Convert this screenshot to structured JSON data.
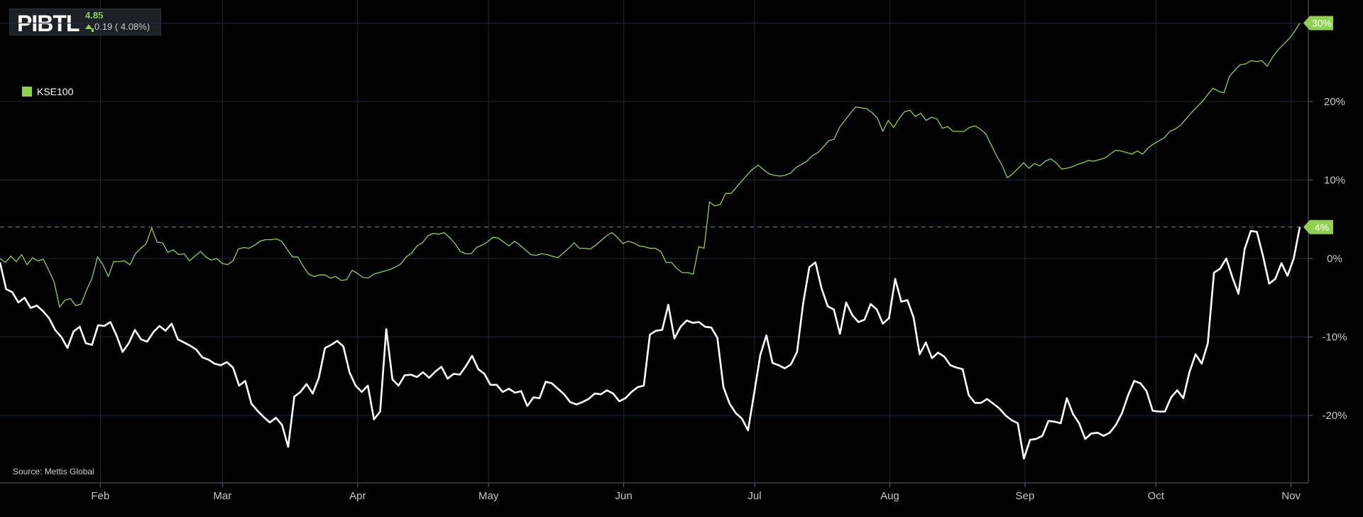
{
  "ticker": {
    "symbol": "PIBTL",
    "price": "4.85",
    "change": "0.19 ( 4.08%)"
  },
  "source": "Source: Mettis Global",
  "colors": {
    "background": "#000000",
    "grid": "#1e2a3a",
    "benchmark": "#8fd14f",
    "stock": "#ffffff",
    "label_bg": "#8fd14f"
  },
  "chart_data": {
    "type": "line",
    "x_tick_labels": [
      "Feb",
      "Mar",
      "Apr",
      "May",
      "Jun",
      "Jul",
      "Aug",
      "Sep",
      "Oct",
      "Nov"
    ],
    "y_tick_labels": [
      "20%",
      "10%",
      "0%",
      "-10%",
      "-20%"
    ],
    "y_ticks": [
      20,
      10,
      0,
      -10,
      -20
    ],
    "ylim": [
      -28,
      33
    ],
    "legend_position": "top-left",
    "end_labels": [
      "30%",
      "4%"
    ],
    "reference_line": 4,
    "x_start": "2023-01-09",
    "x_end": "2023-11-03",
    "x_tick_dates": [
      "2023-02-01",
      "2023-03-01",
      "2023-04-01",
      "2023-05-01",
      "2023-06-01",
      "2023-07-01",
      "2023-08-01",
      "2023-09-01",
      "2023-10-01",
      "2023-11-01"
    ],
    "series": [
      {
        "name": "KSE100",
        "role": "benchmark",
        "values": [
          0,
          -0.5,
          0.3,
          -0.4,
          0.5,
          -0.8,
          0.1,
          -0.3,
          -0.1,
          -1.5,
          -3,
          -6.2,
          -5.3,
          -5.1,
          -6,
          -5.8,
          -4,
          -2.5,
          0.2,
          -0.8,
          -2.3,
          -0.4,
          -0.4,
          -0.3,
          -0.8,
          0.6,
          1.3,
          1.9,
          3.9,
          2.1,
          2,
          0.8,
          1.1,
          0.5,
          0.6,
          -0.3,
          0.3,
          0.9,
          0.2,
          -0.2,
          0,
          -0.6,
          -0.8,
          -0.3,
          1.2,
          1.4,
          1.3,
          1.7,
          2.2,
          2.4,
          2.4,
          2.5,
          2.2,
          1.2,
          0.2,
          0.2,
          -1,
          -2,
          -2.3,
          -2.1,
          -2.1,
          -2.5,
          -2.3,
          -2.8,
          -2.7,
          -1.5,
          -1.9,
          -2.4,
          -2.5,
          -2,
          -1.8,
          -1.6,
          -1.4,
          -1.1,
          -0.7,
          0.2,
          0.7,
          1.6,
          2,
          2.9,
          3.2,
          3.1,
          3.3,
          2.7,
          1.9,
          0.9,
          0.6,
          0.6,
          1.4,
          1.7,
          2.1,
          2.7,
          2.6,
          2.1,
          1.6,
          2.2,
          1.7,
          1.1,
          0.5,
          0.4,
          0.6,
          0.5,
          0.3,
          0.1,
          0.7,
          1.3,
          2,
          1.3,
          1.3,
          1.2,
          1.7,
          2.3,
          2.9,
          3.3,
          2.7,
          1.9,
          2.2,
          2,
          1.6,
          1.5,
          1.3,
          1.3,
          0.9,
          -0.5,
          -0.5,
          -1.3,
          -1.8,
          -1.8,
          -2,
          1.5,
          1.3,
          7.2,
          6.7,
          6.9,
          8.3,
          8.3,
          9.1,
          9.9,
          10.7,
          11.4,
          11.9,
          11.3,
          10.8,
          10.6,
          10.5,
          10.6,
          10.9,
          11.6,
          12,
          12.4,
          13.1,
          13.5,
          14.2,
          15,
          15.2,
          16.7,
          17.6,
          18.5,
          19.3,
          19.2,
          19.1,
          18.6,
          17.9,
          16.2,
          17.6,
          16.7,
          17.8,
          18.7,
          18.9,
          18.1,
          18.5,
          17.6,
          18,
          17.8,
          16.6,
          16.8,
          16.2,
          16.2,
          16.2,
          16.7,
          16.9,
          16.5,
          15.9,
          14.5,
          13.1,
          11.9,
          10.3,
          10.8,
          11.5,
          12.2,
          11.5,
          12.1,
          11.8,
          12.4,
          12.7,
          12.2,
          11.4,
          11.5,
          11.7,
          12,
          12.2,
          12.5,
          12.4,
          12.6,
          12.8,
          13.3,
          13.8,
          13.7,
          13.5,
          13.3,
          13.7,
          13.3,
          14.1,
          14.6,
          15,
          15.4,
          16.2,
          16.5,
          17,
          17.8,
          18.6,
          19.3,
          20,
          20.9,
          21.7,
          21.3,
          21.1,
          23.2,
          24,
          24.7,
          24.8,
          25.2,
          25.1,
          25.2,
          24.5,
          25.7,
          26.6,
          27.3,
          28,
          28.9,
          30
        ]
      },
      {
        "name": "PIBTL",
        "role": "stock",
        "values": [
          -0.5,
          -3.9,
          -4.3,
          -5.6,
          -5,
          -6.3,
          -6,
          -6.7,
          -7.6,
          -9.1,
          -10,
          -11.4,
          -9.3,
          -8.7,
          -10.8,
          -11,
          -8.5,
          -8.6,
          -8.1,
          -9.8,
          -11.9,
          -10.8,
          -9.1,
          -10.3,
          -10.6,
          -9.4,
          -8.6,
          -9.2,
          -8.3,
          -10.3,
          -10.7,
          -11.1,
          -11.6,
          -12.6,
          -12.9,
          -13.4,
          -13.6,
          -13.2,
          -13.9,
          -16.2,
          -15.6,
          -18.5,
          -19.4,
          -20.2,
          -20.9,
          -20.3,
          -21.2,
          -24,
          -17.6,
          -17,
          -16,
          -17.2,
          -15.2,
          -11.4,
          -11,
          -10.5,
          -11.2,
          -14.5,
          -16.2,
          -17,
          -16.2,
          -20.5,
          -19.5,
          -9,
          -15.4,
          -16.2,
          -14.9,
          -14.8,
          -15.1,
          -14.5,
          -15.2,
          -14.4,
          -13.8,
          -15.3,
          -14.7,
          -14.8,
          -13.7,
          -12.4,
          -14.1,
          -14.7,
          -16.1,
          -16.1,
          -17,
          -16.6,
          -17.1,
          -16.9,
          -18.8,
          -17.7,
          -17.8,
          -15.7,
          -15.9,
          -16.6,
          -17.3,
          -18.3,
          -18.6,
          -18.3,
          -17.9,
          -17.2,
          -17.3,
          -16.8,
          -17.2,
          -18.2,
          -17.8,
          -17,
          -16.4,
          -16.2,
          -9.7,
          -9.2,
          -9.1,
          -5.9,
          -10.2,
          -8.7,
          -7.9,
          -8.2,
          -8.1,
          -8.7,
          -8.8,
          -10.1,
          -16.4,
          -18.5,
          -19.7,
          -20.4,
          -21.9,
          -17.2,
          -12.3,
          -9.8,
          -13.3,
          -13.6,
          -14,
          -13.5,
          -11.9,
          -5.7,
          -1.1,
          -0.5,
          -3.8,
          -6.1,
          -6.5,
          -9.6,
          -5.6,
          -7.2,
          -8.1,
          -7.8,
          -5.8,
          -6.5,
          -8.3,
          -7.6,
          -2.6,
          -5.5,
          -5.3,
          -7.5,
          -12.2,
          -10.7,
          -12.7,
          -12,
          -12.5,
          -13.6,
          -13.9,
          -14.1,
          -17.4,
          -18.4,
          -18.4,
          -17.9,
          -18.5,
          -19.1,
          -20,
          -20.6,
          -21,
          -25.5,
          -23.1,
          -23,
          -22.6,
          -20.7,
          -20.8,
          -21,
          -17.8,
          -19.8,
          -21,
          -23,
          -22.3,
          -22.2,
          -22.6,
          -22.2,
          -21.2,
          -19.7,
          -17.4,
          -15.6,
          -15.9,
          -16.9,
          -19.4,
          -19.5,
          -19.5,
          -17.7,
          -16.8,
          -17.8,
          -14.5,
          -12.2,
          -13.4,
          -10.8,
          -1.8,
          -1.3,
          0,
          -2.4,
          -4.5,
          1.2,
          3.5,
          3.4,
          0.3,
          -3.2,
          -2.6,
          -0.6,
          -2.2,
          0,
          4
        ]
      }
    ]
  }
}
